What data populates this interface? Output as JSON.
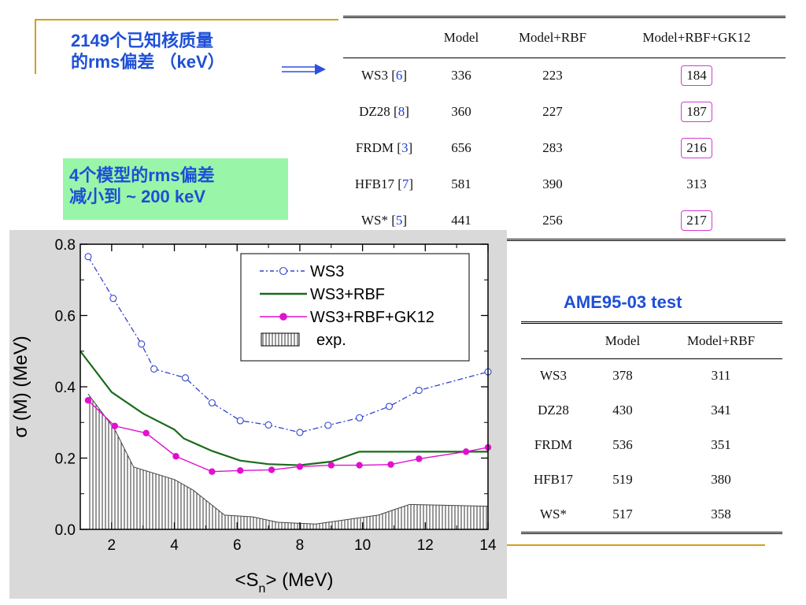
{
  "top_label": {
    "line1": "2149个已知核质量",
    "line2": "的rms偏差 （keV）"
  },
  "green_label": {
    "line1": "4个模型的rms偏差",
    "line2": "减小到 ~ 200 keV"
  },
  "table1": {
    "headers": [
      "",
      "Model",
      "Model+RBF",
      "Model+RBF+GK12"
    ],
    "rows": [
      {
        "name": "WS3 [",
        "ref": "6",
        "close": "]",
        "model": "336",
        "rbf": "223",
        "gk": "184",
        "boxed": true
      },
      {
        "name": "DZ28 [",
        "ref": "8",
        "close": "]",
        "model": "360",
        "rbf": "227",
        "gk": "187",
        "boxed": true
      },
      {
        "name": "FRDM [",
        "ref": "3",
        "close": "]",
        "model": "656",
        "rbf": "283",
        "gk": "216",
        "boxed": true
      },
      {
        "name": "HFB17 [",
        "ref": "7",
        "close": "]",
        "model": "581",
        "rbf": "390",
        "gk": "313",
        "boxed": false
      },
      {
        "name": "WS* [",
        "ref": "5",
        "close": "]",
        "model": "441",
        "rbf": "256",
        "gk": "217",
        "boxed": true
      }
    ]
  },
  "table2": {
    "title": "AME95-03 test",
    "headers": [
      "",
      "Model",
      "Model+RBF"
    ],
    "rows": [
      {
        "name": "WS3",
        "model": "378",
        "rbf": "311"
      },
      {
        "name": "DZ28",
        "model": "430",
        "rbf": "341"
      },
      {
        "name": "FRDM",
        "model": "536",
        "rbf": "351"
      },
      {
        "name": "HFB17",
        "model": "519",
        "rbf": "380"
      },
      {
        "name": "WS*",
        "model": "517",
        "rbf": "358"
      }
    ]
  },
  "chart_data": {
    "type": "line",
    "title": "",
    "xlabel": "<S",
    "xlabel_sub": "n",
    "xlabel_rest": "> (MeV)",
    "ylabel": "σ (M) (MeV)",
    "xlim": [
      1,
      14
    ],
    "ylim": [
      0,
      0.8
    ],
    "xticks": [
      "2",
      "4",
      "6",
      "8",
      "10",
      "12",
      "14"
    ],
    "yticks": [
      "0.0",
      "0.2",
      "0.4",
      "0.6",
      "0.8"
    ],
    "legend_position": "top-right",
    "colors": {
      "ws3": "#3344cc",
      "rbf": "#1a6b1a",
      "gk": "#e010d0",
      "exp": "#444444"
    },
    "series": [
      {
        "name": "WS3",
        "x": [
          1.25,
          2.05,
          2.95,
          3.35,
          4.35,
          5.2,
          6.1,
          7.0,
          8.0,
          8.9,
          9.9,
          10.85,
          11.8,
          14.0
        ],
        "y": [
          0.765,
          0.648,
          0.52,
          0.45,
          0.425,
          0.355,
          0.305,
          0.293,
          0.272,
          0.292,
          0.313,
          0.345,
          0.39,
          0.442
        ]
      },
      {
        "name": "WS3+RBF",
        "x": [
          1.0,
          2.0,
          3.0,
          4.0,
          4.3,
          5.2,
          6.1,
          7.0,
          8.0,
          9.0,
          9.9,
          11.0,
          12.0,
          14.0
        ],
        "y": [
          0.5,
          0.385,
          0.325,
          0.28,
          0.255,
          0.22,
          0.193,
          0.183,
          0.18,
          0.19,
          0.218,
          0.218,
          0.218,
          0.218
        ]
      },
      {
        "name": "WS3+RBF+GK12",
        "x": [
          1.25,
          2.1,
          3.1,
          4.05,
          5.2,
          6.1,
          7.1,
          8.0,
          9.0,
          9.9,
          10.9,
          11.8,
          13.3,
          14.0
        ],
        "y": [
          0.362,
          0.29,
          0.27,
          0.205,
          0.162,
          0.165,
          0.167,
          0.176,
          0.18,
          0.18,
          0.182,
          0.198,
          0.218,
          0.23
        ]
      },
      {
        "name": "exp.",
        "type": "area",
        "x": [
          1.25,
          2.1,
          2.7,
          4.0,
          4.6,
          5.6,
          6.5,
          7.3,
          8.5,
          10.5,
          11.5,
          14.0
        ],
        "y": [
          0.38,
          0.28,
          0.175,
          0.14,
          0.11,
          0.04,
          0.035,
          0.02,
          0.015,
          0.04,
          0.07,
          0.065
        ]
      }
    ]
  }
}
